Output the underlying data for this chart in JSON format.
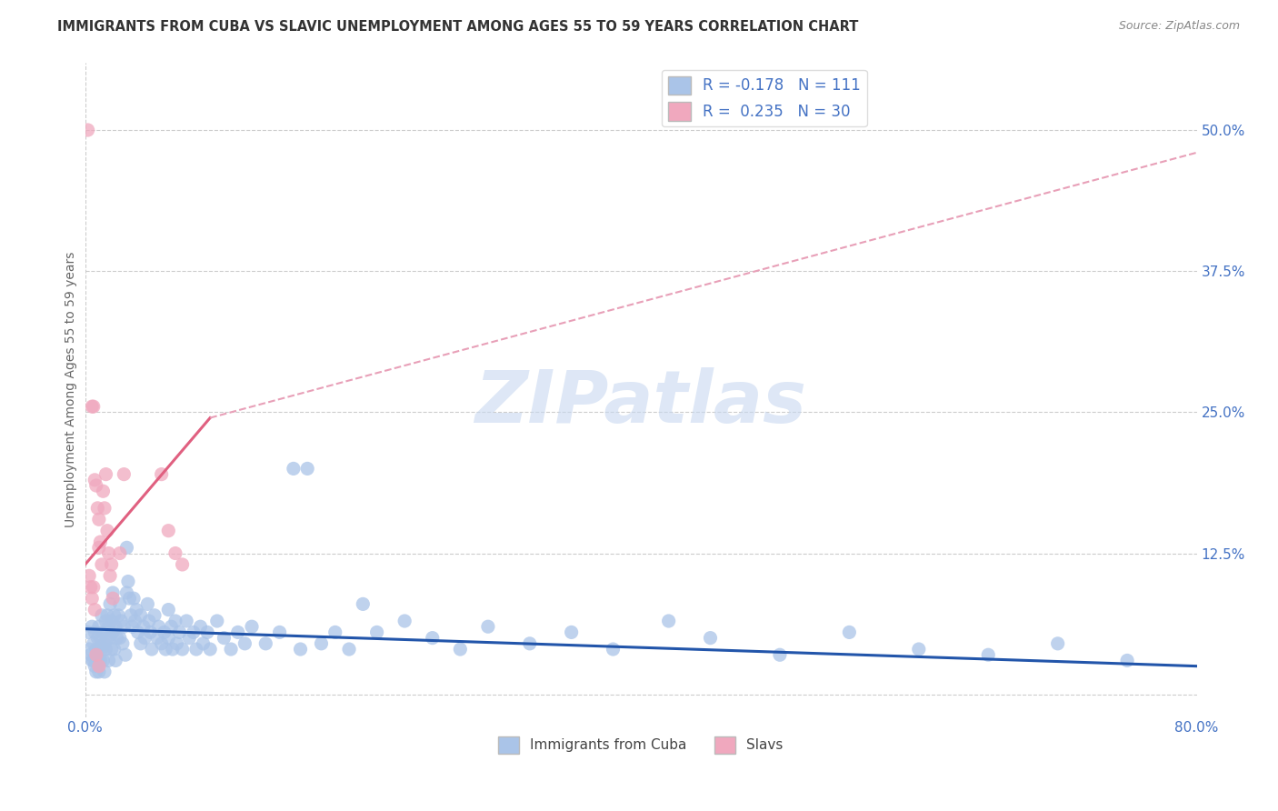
{
  "title": "IMMIGRANTS FROM CUBA VS SLAVIC UNEMPLOYMENT AMONG AGES 55 TO 59 YEARS CORRELATION CHART",
  "source": "Source: ZipAtlas.com",
  "ylabel": "Unemployment Among Ages 55 to 59 years",
  "xlim": [
    0.0,
    0.8
  ],
  "ylim": [
    -0.02,
    0.56
  ],
  "yticks": [
    0.0,
    0.125,
    0.25,
    0.375,
    0.5
  ],
  "ytick_labels": [
    "",
    "12.5%",
    "25.0%",
    "37.5%",
    "50.0%"
  ],
  "xticks": [
    0.0,
    0.8
  ],
  "xtick_labels": [
    "0.0%",
    "80.0%"
  ],
  "cuba_color": "#aac4e8",
  "slav_color": "#f0a8be",
  "cuba_line_color": "#2255aa",
  "slav_line_color": "#e06080",
  "slav_line_dashed_color": "#e8a0b8",
  "watermark_color": "#c8d8f0",
  "background_color": "#ffffff",
  "grid_color": "#cccccc",
  "label_color": "#4472c4",
  "title_color": "#333333",
  "source_color": "#888888",
  "ylabel_color": "#666666",
  "cuba_scatter": [
    [
      0.002,
      0.055
    ],
    [
      0.003,
      0.04
    ],
    [
      0.004,
      0.035
    ],
    [
      0.005,
      0.06
    ],
    [
      0.005,
      0.03
    ],
    [
      0.006,
      0.045
    ],
    [
      0.006,
      0.03
    ],
    [
      0.007,
      0.055
    ],
    [
      0.007,
      0.025
    ],
    [
      0.008,
      0.04
    ],
    [
      0.008,
      0.02
    ],
    [
      0.009,
      0.05
    ],
    [
      0.009,
      0.03
    ],
    [
      0.01,
      0.06
    ],
    [
      0.01,
      0.04
    ],
    [
      0.01,
      0.02
    ],
    [
      0.011,
      0.05
    ],
    [
      0.011,
      0.03
    ],
    [
      0.012,
      0.07
    ],
    [
      0.012,
      0.04
    ],
    [
      0.013,
      0.055
    ],
    [
      0.013,
      0.03
    ],
    [
      0.014,
      0.045
    ],
    [
      0.014,
      0.02
    ],
    [
      0.015,
      0.065
    ],
    [
      0.015,
      0.04
    ],
    [
      0.016,
      0.07
    ],
    [
      0.016,
      0.05
    ],
    [
      0.017,
      0.06
    ],
    [
      0.017,
      0.03
    ],
    [
      0.018,
      0.08
    ],
    [
      0.018,
      0.05
    ],
    [
      0.019,
      0.065
    ],
    [
      0.019,
      0.04
    ],
    [
      0.02,
      0.09
    ],
    [
      0.02,
      0.055
    ],
    [
      0.021,
      0.07
    ],
    [
      0.021,
      0.04
    ],
    [
      0.022,
      0.06
    ],
    [
      0.022,
      0.03
    ],
    [
      0.023,
      0.05
    ],
    [
      0.024,
      0.07
    ],
    [
      0.025,
      0.08
    ],
    [
      0.025,
      0.05
    ],
    [
      0.026,
      0.065
    ],
    [
      0.027,
      0.045
    ],
    [
      0.028,
      0.06
    ],
    [
      0.029,
      0.035
    ],
    [
      0.03,
      0.13
    ],
    [
      0.03,
      0.09
    ],
    [
      0.031,
      0.1
    ],
    [
      0.032,
      0.085
    ],
    [
      0.033,
      0.07
    ],
    [
      0.034,
      0.06
    ],
    [
      0.035,
      0.085
    ],
    [
      0.036,
      0.065
    ],
    [
      0.037,
      0.075
    ],
    [
      0.038,
      0.055
    ],
    [
      0.04,
      0.07
    ],
    [
      0.04,
      0.045
    ],
    [
      0.042,
      0.06
    ],
    [
      0.043,
      0.05
    ],
    [
      0.045,
      0.08
    ],
    [
      0.046,
      0.065
    ],
    [
      0.047,
      0.055
    ],
    [
      0.048,
      0.04
    ],
    [
      0.05,
      0.07
    ],
    [
      0.052,
      0.05
    ],
    [
      0.053,
      0.06
    ],
    [
      0.055,
      0.045
    ],
    [
      0.057,
      0.055
    ],
    [
      0.058,
      0.04
    ],
    [
      0.06,
      0.075
    ],
    [
      0.06,
      0.05
    ],
    [
      0.062,
      0.06
    ],
    [
      0.063,
      0.04
    ],
    [
      0.065,
      0.065
    ],
    [
      0.066,
      0.045
    ],
    [
      0.068,
      0.055
    ],
    [
      0.07,
      0.04
    ],
    [
      0.073,
      0.065
    ],
    [
      0.075,
      0.05
    ],
    [
      0.078,
      0.055
    ],
    [
      0.08,
      0.04
    ],
    [
      0.083,
      0.06
    ],
    [
      0.085,
      0.045
    ],
    [
      0.088,
      0.055
    ],
    [
      0.09,
      0.04
    ],
    [
      0.095,
      0.065
    ],
    [
      0.1,
      0.05
    ],
    [
      0.105,
      0.04
    ],
    [
      0.11,
      0.055
    ],
    [
      0.115,
      0.045
    ],
    [
      0.12,
      0.06
    ],
    [
      0.13,
      0.045
    ],
    [
      0.14,
      0.055
    ],
    [
      0.15,
      0.2
    ],
    [
      0.155,
      0.04
    ],
    [
      0.16,
      0.2
    ],
    [
      0.17,
      0.045
    ],
    [
      0.18,
      0.055
    ],
    [
      0.19,
      0.04
    ],
    [
      0.2,
      0.08
    ],
    [
      0.21,
      0.055
    ],
    [
      0.23,
      0.065
    ],
    [
      0.25,
      0.05
    ],
    [
      0.27,
      0.04
    ],
    [
      0.29,
      0.06
    ],
    [
      0.32,
      0.045
    ],
    [
      0.35,
      0.055
    ],
    [
      0.38,
      0.04
    ],
    [
      0.42,
      0.065
    ],
    [
      0.45,
      0.05
    ],
    [
      0.5,
      0.035
    ],
    [
      0.55,
      0.055
    ],
    [
      0.6,
      0.04
    ],
    [
      0.65,
      0.035
    ],
    [
      0.7,
      0.045
    ],
    [
      0.75,
      0.03
    ]
  ],
  "slav_scatter": [
    [
      0.002,
      0.5
    ],
    [
      0.005,
      0.255
    ],
    [
      0.006,
      0.255
    ],
    [
      0.007,
      0.19
    ],
    [
      0.008,
      0.185
    ],
    [
      0.009,
      0.165
    ],
    [
      0.01,
      0.155
    ],
    [
      0.01,
      0.13
    ],
    [
      0.011,
      0.135
    ],
    [
      0.012,
      0.115
    ],
    [
      0.013,
      0.18
    ],
    [
      0.014,
      0.165
    ],
    [
      0.015,
      0.195
    ],
    [
      0.016,
      0.145
    ],
    [
      0.017,
      0.125
    ],
    [
      0.005,
      0.085
    ],
    [
      0.006,
      0.095
    ],
    [
      0.007,
      0.075
    ],
    [
      0.018,
      0.105
    ],
    [
      0.019,
      0.115
    ],
    [
      0.02,
      0.085
    ],
    [
      0.025,
      0.125
    ],
    [
      0.028,
      0.195
    ],
    [
      0.055,
      0.195
    ],
    [
      0.06,
      0.145
    ],
    [
      0.065,
      0.125
    ],
    [
      0.07,
      0.115
    ],
    [
      0.003,
      0.105
    ],
    [
      0.004,
      0.095
    ],
    [
      0.008,
      0.035
    ],
    [
      0.01,
      0.025
    ]
  ],
  "cuba_line": [
    [
      0.0,
      0.058
    ],
    [
      0.8,
      0.025
    ]
  ],
  "slav_line_solid": [
    [
      0.0,
      0.115
    ],
    [
      0.09,
      0.245
    ]
  ],
  "slav_line_dashed": [
    [
      0.09,
      0.245
    ],
    [
      0.8,
      0.48
    ]
  ]
}
